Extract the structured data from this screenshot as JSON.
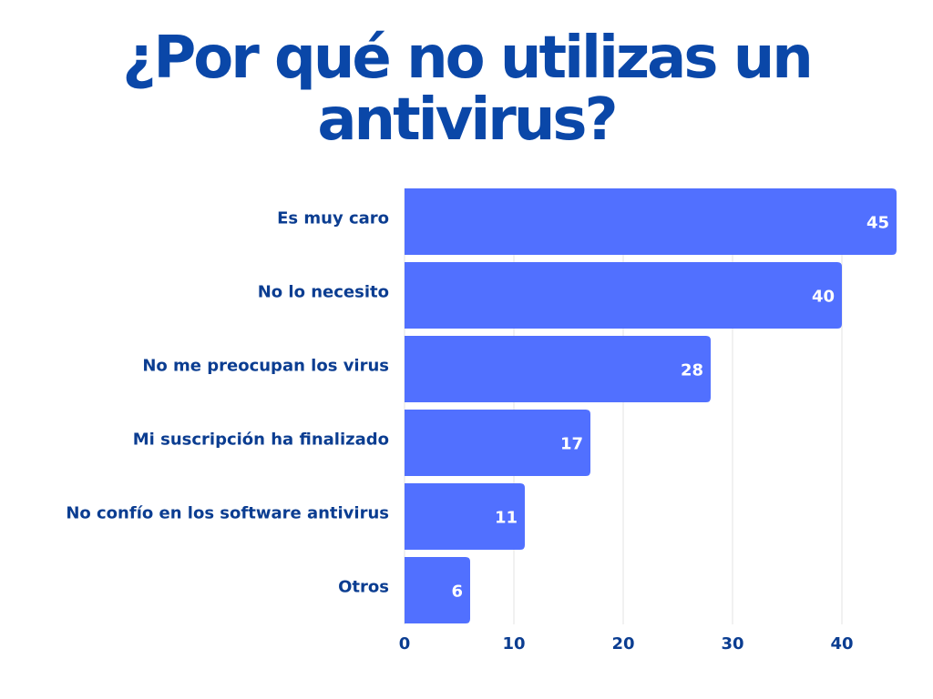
{
  "chart_data": {
    "type": "bar",
    "orientation": "horizontal",
    "title": "¿Por qué no utilizas un antivirus?",
    "categories": [
      "Es muy caro",
      "No lo necesito",
      "No me preocupan los virus",
      "Mi suscripción ha finalizado",
      "No confío en los software antivirus",
      "Otros"
    ],
    "values": [
      45,
      40,
      28,
      17,
      11,
      6
    ],
    "xticks": [
      0,
      10,
      20,
      30,
      40
    ],
    "xlim": [
      0,
      45
    ],
    "xlabel": "",
    "ylabel": "",
    "grid": true,
    "colors": {
      "bar": "#5170ff",
      "title": "#0a47a8",
      "label": "#0b3d91",
      "grid": "#e3e3e3"
    }
  }
}
